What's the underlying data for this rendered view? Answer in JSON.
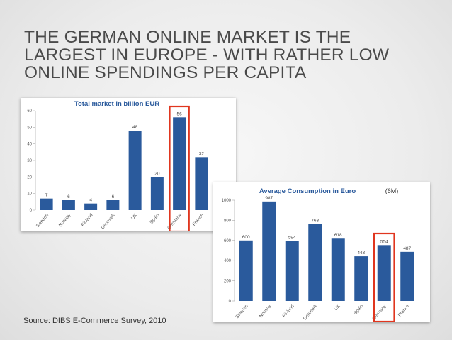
{
  "slide": {
    "title_lines": [
      "THE GERMAN ONLINE MARKET IS THE",
      "LARGEST IN EUROPE - WITH RATHER LOW",
      "ONLINE SPENDINGS PER CAPITA"
    ],
    "source": "Source: DIBS E-Commerce Survey, 2010"
  },
  "colors": {
    "bar": "#2a5a9c",
    "highlight": "#e0361f",
    "title_text": "#2a5a9c"
  },
  "chart_data": [
    {
      "type": "bar",
      "title": "Total market in billion EUR",
      "categories": [
        "Sweden",
        "Norway",
        "Finland",
        "Denmark",
        "UK",
        "Spain",
        "Germany",
        "France"
      ],
      "values": [
        7,
        6,
        4,
        6,
        48,
        20,
        56,
        32
      ],
      "ylim": [
        0,
        60
      ],
      "yticks": [
        0,
        10,
        20,
        30,
        40,
        50,
        60
      ],
      "highlighted": "Germany",
      "grid": false
    },
    {
      "type": "bar",
      "title": "Average Consumption in Euro",
      "note": "(6M)",
      "categories": [
        "Sweden",
        "Norway",
        "Finland",
        "Denmark",
        "UK",
        "Spain",
        "Germany",
        "France"
      ],
      "values": [
        600,
        987,
        594,
        763,
        618,
        443,
        554,
        487
      ],
      "ylim": [
        0,
        1000
      ],
      "yticks": [
        0,
        200,
        400,
        600,
        800,
        1000
      ],
      "highlighted": "Germany",
      "grid": false
    }
  ]
}
